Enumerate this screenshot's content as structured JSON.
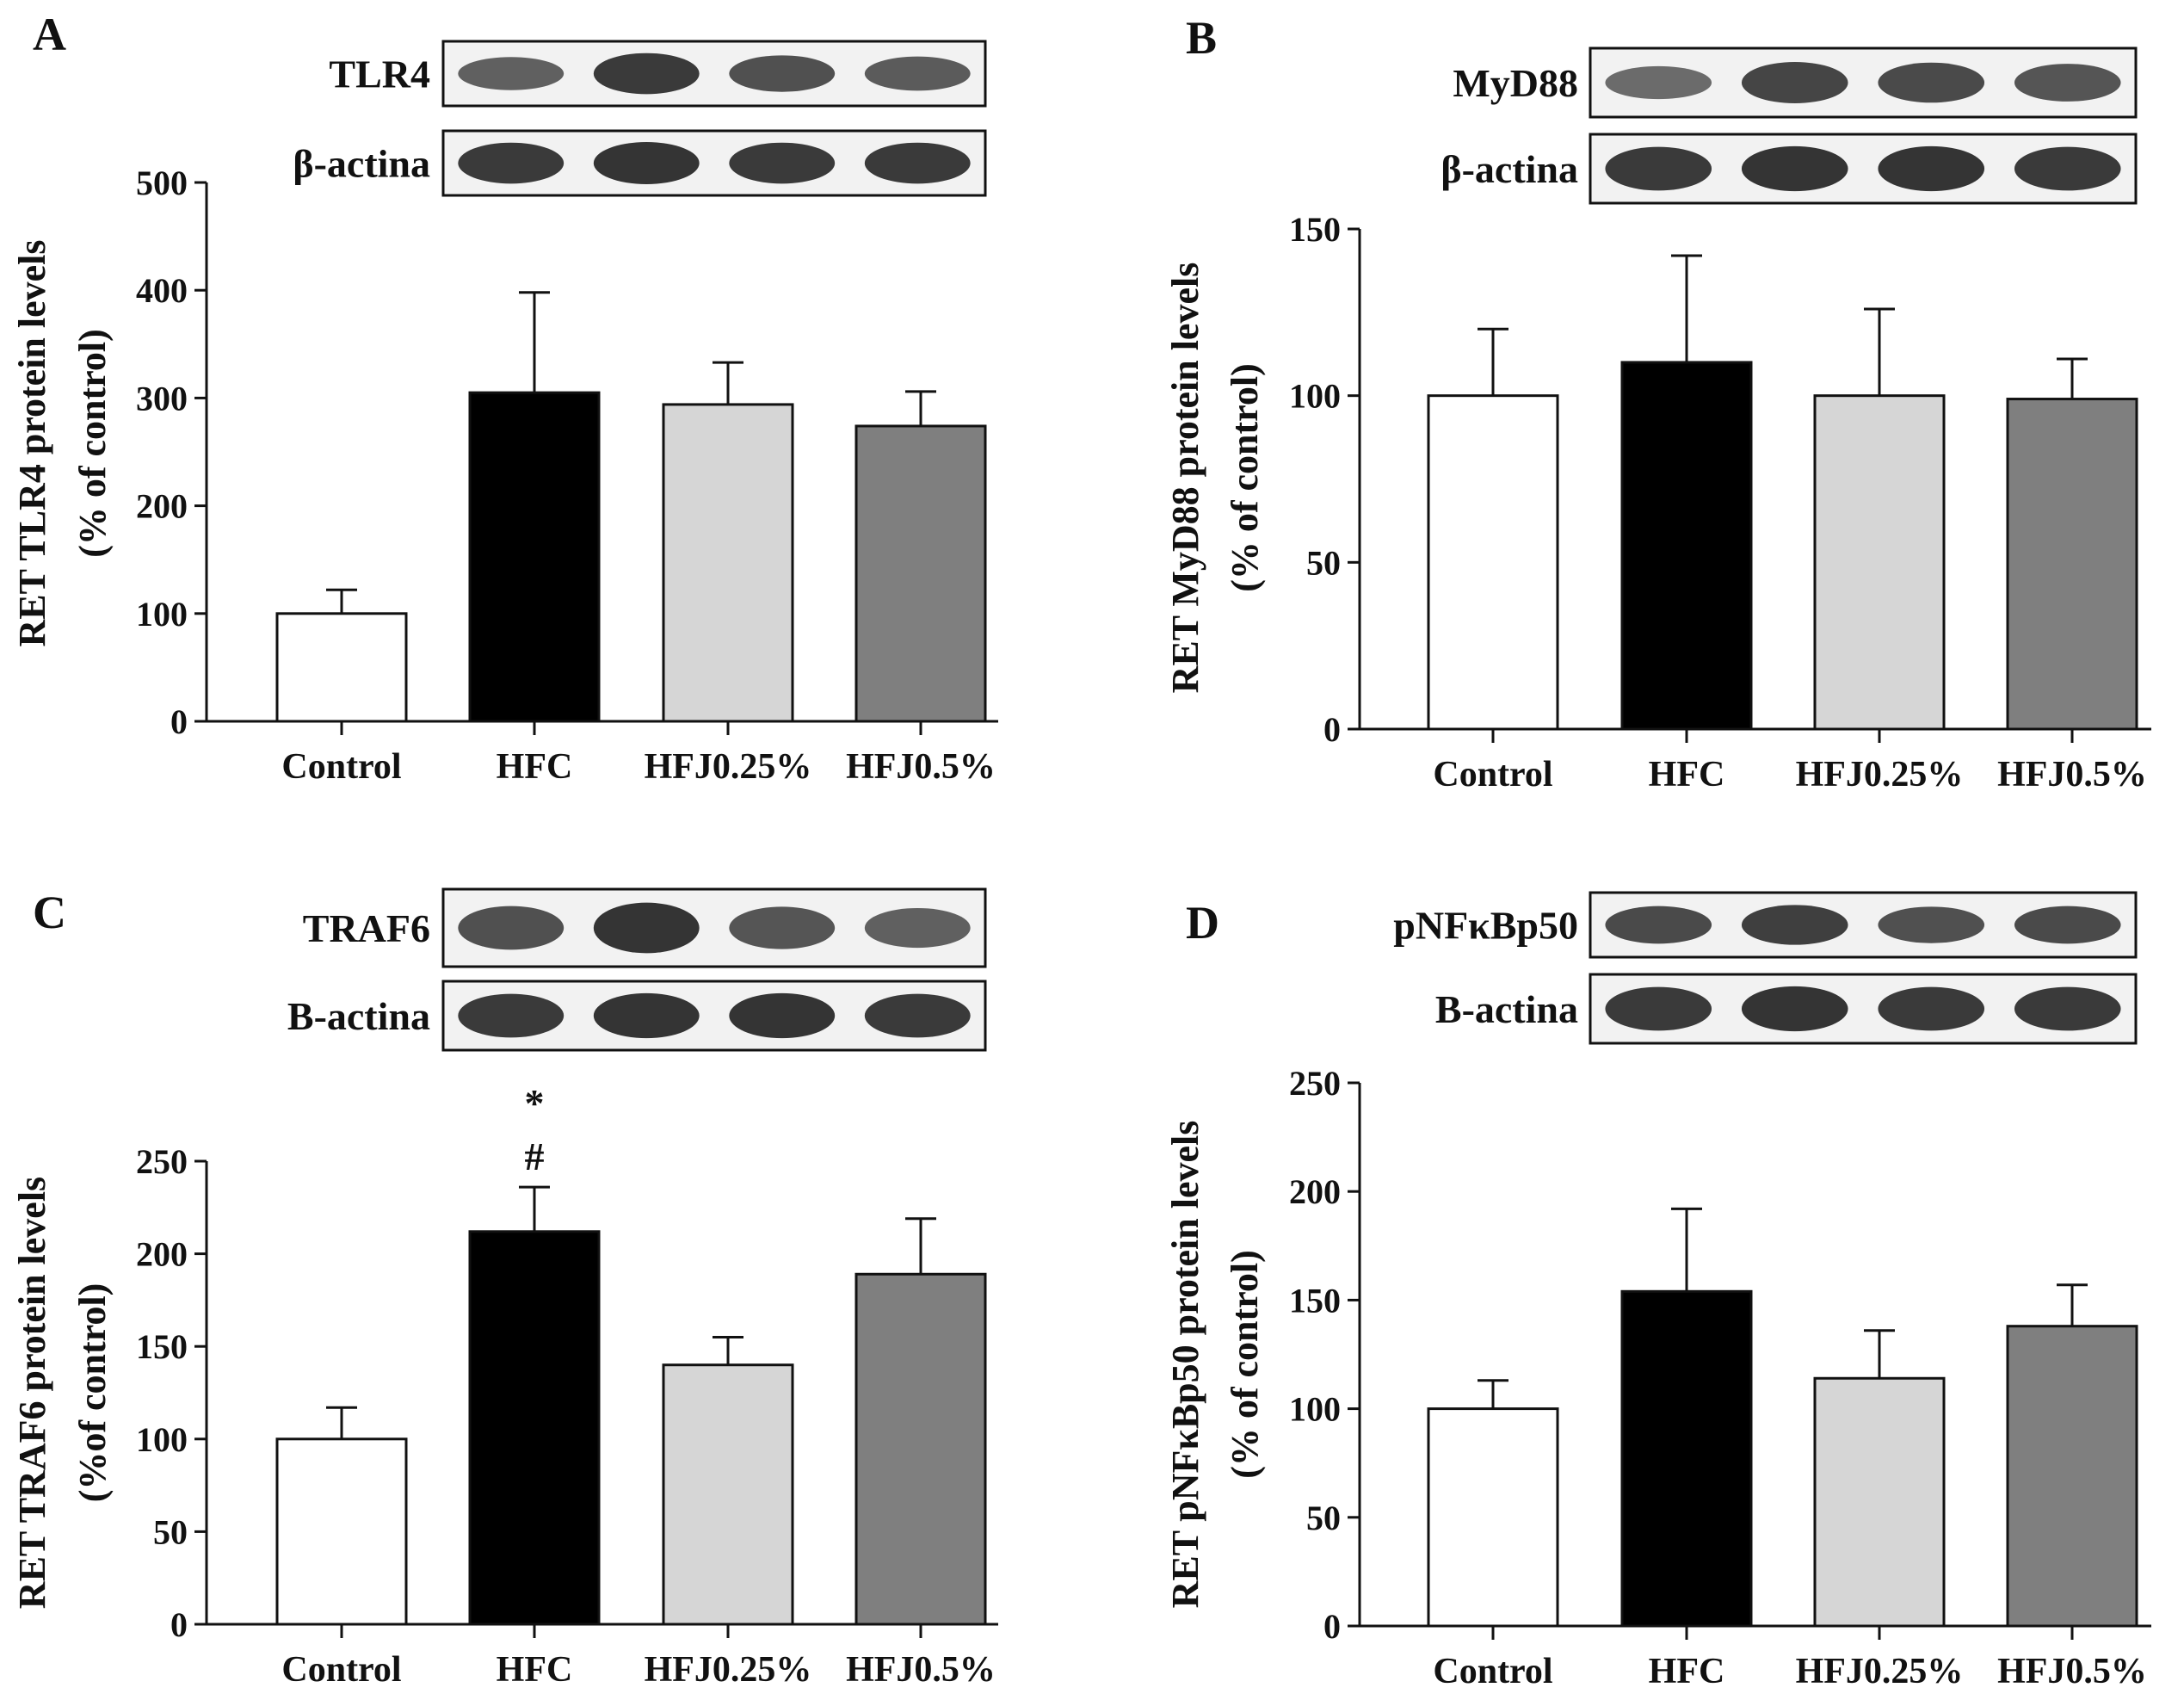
{
  "colors": {
    "control": "#ffffff",
    "hfc": "#000000",
    "hfj025": "#d6d6d6",
    "hfj05": "#7f7f7f",
    "outline": "#111111",
    "band": "#1a1a1a"
  },
  "chart_data": [
    {
      "type": "bar",
      "panel_label": "A",
      "categories": [
        "Control",
        "HFC",
        "HFJ0.25%",
        "HFJ0.5%"
      ],
      "values": [
        100,
        305,
        294,
        274
      ],
      "error": [
        22,
        93,
        39,
        32
      ],
      "annotations": [
        "",
        "",
        "",
        ""
      ],
      "ylabel": [
        "RET TLR4 protein levels",
        "(% of control)"
      ],
      "ylim": [
        0,
        500
      ],
      "yticks": [
        0,
        100,
        200,
        300,
        400,
        500
      ],
      "blots": [
        {
          "label": "TLR4",
          "intensity": [
            0.55,
            0.9,
            0.7,
            0.6
          ]
        },
        {
          "label": "β-actina",
          "intensity": [
            0.9,
            0.95,
            0.9,
            0.9
          ]
        }
      ]
    },
    {
      "type": "bar",
      "panel_label": "B",
      "categories": [
        "Control",
        "HFC",
        "HFJ0.25%",
        "HFJ0.5%"
      ],
      "values": [
        100,
        110,
        100,
        99
      ],
      "error": [
        20,
        32,
        26,
        12
      ],
      "annotations": [
        "",
        "",
        "",
        ""
      ],
      "ylabel": [
        "RET MyD88 protein levels",
        "(% of control)"
      ],
      "ylim": [
        0,
        150
      ],
      "yticks": [
        0,
        50,
        100,
        150
      ],
      "blots": [
        {
          "label": "MyD88",
          "intensity": [
            0.45,
            0.8,
            0.75,
            0.65
          ]
        },
        {
          "label": "β-actina",
          "intensity": [
            0.9,
            0.95,
            0.95,
            0.9
          ]
        }
      ]
    },
    {
      "type": "bar",
      "panel_label": "C",
      "categories": [
        "Control",
        "HFC",
        "HFJ0.25%",
        "HFJ0.5%"
      ],
      "values": [
        100,
        212,
        140,
        189
      ],
      "error": [
        17,
        24,
        15,
        30
      ],
      "annotations": [
        "",
        "*\n#",
        "",
        ""
      ],
      "ylabel": [
        "RET TRAF6 protein levels",
        "(%of control)"
      ],
      "ylim": [
        0,
        250
      ],
      "yticks": [
        0,
        50,
        100,
        150,
        200,
        250
      ],
      "blots": [
        {
          "label": "TRAF6",
          "intensity": [
            0.7,
            0.95,
            0.65,
            0.55
          ]
        },
        {
          "label": "B-actina",
          "intensity": [
            0.9,
            0.95,
            0.95,
            0.9
          ]
        }
      ]
    },
    {
      "type": "bar",
      "panel_label": "D",
      "categories": [
        "Control",
        "HFC",
        "HFJ0.25%",
        "HFJ0.5%"
      ],
      "values": [
        100,
        154,
        114,
        138
      ],
      "error": [
        13,
        38,
        22,
        19
      ],
      "annotations": [
        "",
        "",
        "",
        ""
      ],
      "ylabel": [
        "RET pNFκBp50 protein levels",
        "(% of control)"
      ],
      "ylim": [
        0,
        250
      ],
      "yticks": [
        0,
        50,
        100,
        150,
        200,
        250
      ],
      "blots": [
        {
          "label": "pNFκBp50",
          "intensity": [
            0.75,
            0.85,
            0.7,
            0.75
          ]
        },
        {
          "label": "B-actina",
          "intensity": [
            0.9,
            0.95,
            0.9,
            0.9
          ]
        }
      ]
    }
  ]
}
